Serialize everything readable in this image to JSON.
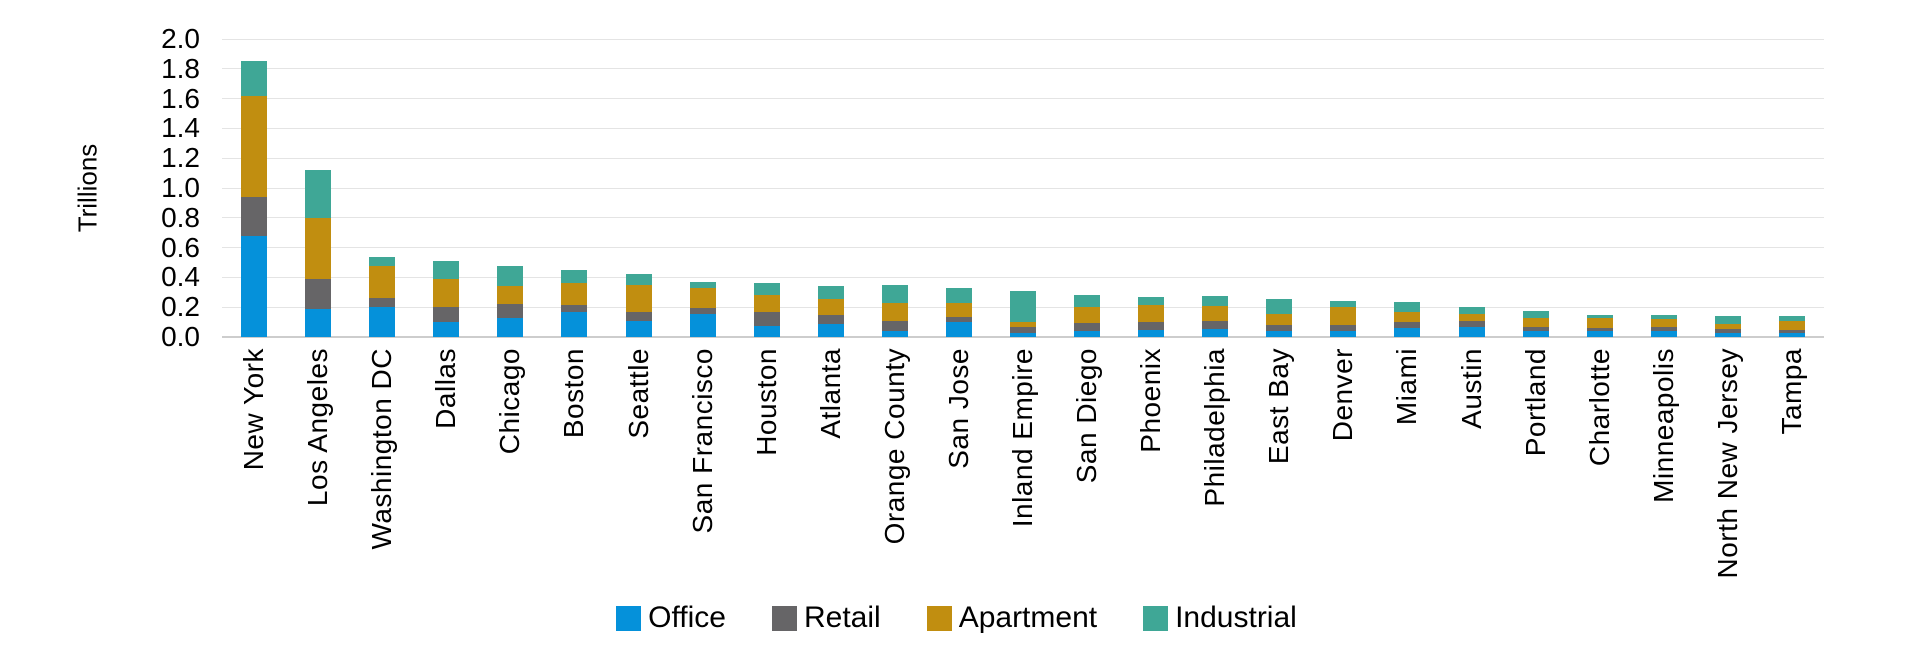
{
  "chart_data": {
    "type": "bar",
    "stacked": true,
    "title": "",
    "ylabel": "Trillions",
    "xlabel": "",
    "ylim": [
      0,
      2.0
    ],
    "ytick_step": 0.2,
    "ytick_labels": [
      "0.0",
      "0.2",
      "0.4",
      "0.6",
      "0.8",
      "1.0",
      "1.2",
      "1.4",
      "1.6",
      "1.8",
      "2.0"
    ],
    "grid": true,
    "gridline_color": "#E4E4E4",
    "axis_line_color": "#CDCDCD",
    "legend_position": "bottom",
    "categories": [
      "New York",
      "Los Angeles",
      "Washington DC",
      "Dallas",
      "Chicago",
      "Boston",
      "Seattle",
      "San Francisco",
      "Houston",
      "Atlanta",
      "Orange County",
      "San Jose",
      "Inland Empire",
      "San Diego",
      "Phoenix",
      "Philadelphia",
      "East Bay",
      "Denver",
      "Miami",
      "Austin",
      "Portland",
      "Charlotte",
      "Minneapolis",
      "North New Jersey",
      "Tampa"
    ],
    "series": [
      {
        "name": "Office",
        "color": "#0591DA",
        "values": [
          0.68,
          0.19,
          0.2,
          0.1,
          0.13,
          0.17,
          0.11,
          0.155,
          0.075,
          0.085,
          0.04,
          0.1,
          0.025,
          0.04,
          0.05,
          0.055,
          0.04,
          0.04,
          0.06,
          0.07,
          0.04,
          0.04,
          0.04,
          0.025,
          0.025
        ]
      },
      {
        "name": "Retail",
        "color": "#666567",
        "values": [
          0.26,
          0.2,
          0.065,
          0.1,
          0.09,
          0.045,
          0.06,
          0.04,
          0.095,
          0.06,
          0.065,
          0.035,
          0.045,
          0.055,
          0.05,
          0.055,
          0.04,
          0.04,
          0.04,
          0.035,
          0.025,
          0.02,
          0.025,
          0.03,
          0.025
        ]
      },
      {
        "name": "Apartment",
        "color": "#C18E10",
        "values": [
          0.68,
          0.41,
          0.21,
          0.19,
          0.125,
          0.145,
          0.18,
          0.135,
          0.11,
          0.11,
          0.125,
          0.09,
          0.03,
          0.105,
          0.115,
          0.095,
          0.075,
          0.12,
          0.07,
          0.05,
          0.065,
          0.065,
          0.055,
          0.035,
          0.055
        ]
      },
      {
        "name": "Industrial",
        "color": "#3FA796",
        "values": [
          0.23,
          0.32,
          0.065,
          0.12,
          0.135,
          0.09,
          0.075,
          0.04,
          0.085,
          0.09,
          0.12,
          0.105,
          0.21,
          0.085,
          0.055,
          0.07,
          0.1,
          0.04,
          0.065,
          0.045,
          0.045,
          0.025,
          0.03,
          0.05,
          0.035
        ]
      }
    ]
  }
}
